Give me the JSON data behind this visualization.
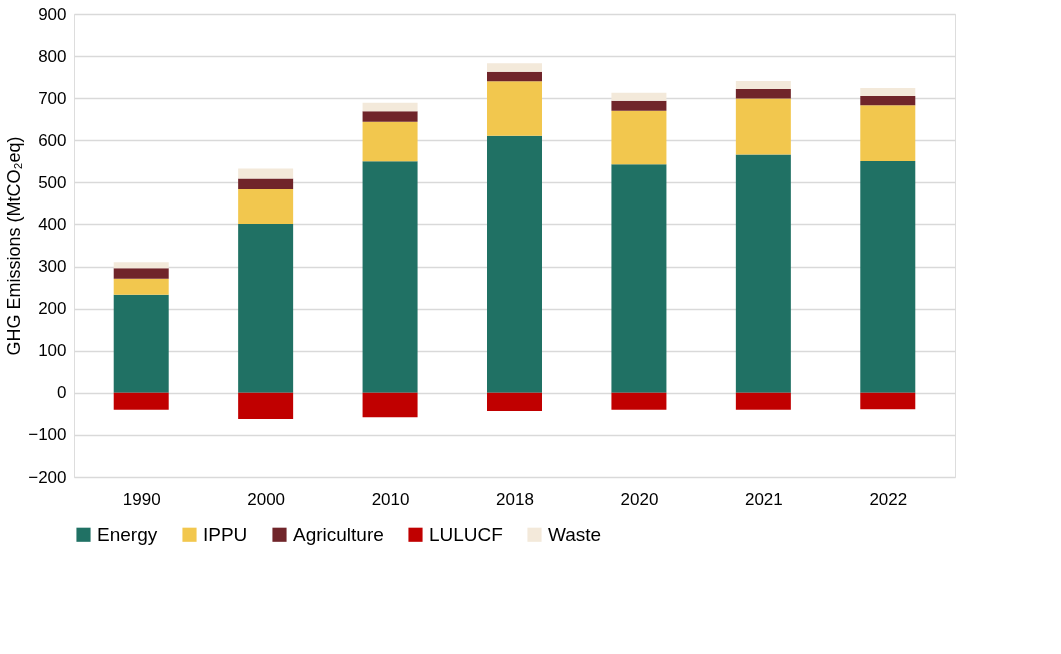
{
  "chart_data": {
    "type": "bar",
    "stacked": true,
    "ylabel": "GHG Emissions (MtCO₂eq)",
    "categories": [
      "1990",
      "2000",
      "2010",
      "2018",
      "2020",
      "2021",
      "2022"
    ],
    "series": [
      {
        "name": "Energy",
        "color": "#207164",
        "values": [
          233,
          401,
          550,
          611,
          543,
          566,
          551
        ]
      },
      {
        "name": "IPPU",
        "color": "#f2c74e",
        "values": [
          38,
          83,
          94,
          129,
          127,
          133,
          132
        ]
      },
      {
        "name": "Agriculture",
        "color": "#70252a",
        "values": [
          25,
          25,
          25,
          23,
          24,
          23,
          22
        ]
      },
      {
        "name": "LULUCF",
        "color": "#c00000",
        "values": [
          -40,
          -62,
          -58,
          -43,
          -40,
          -40,
          -39
        ]
      },
      {
        "name": "Waste",
        "color": "#f3e9da",
        "values": [
          14,
          24,
          20,
          20,
          19,
          19,
          19
        ]
      }
    ],
    "ylim": [
      -200,
      900
    ],
    "yticks": [
      -200,
      -100,
      0,
      100,
      200,
      300,
      400,
      500,
      600,
      700,
      800,
      900
    ],
    "grid": "y",
    "legend": "bottom"
  }
}
